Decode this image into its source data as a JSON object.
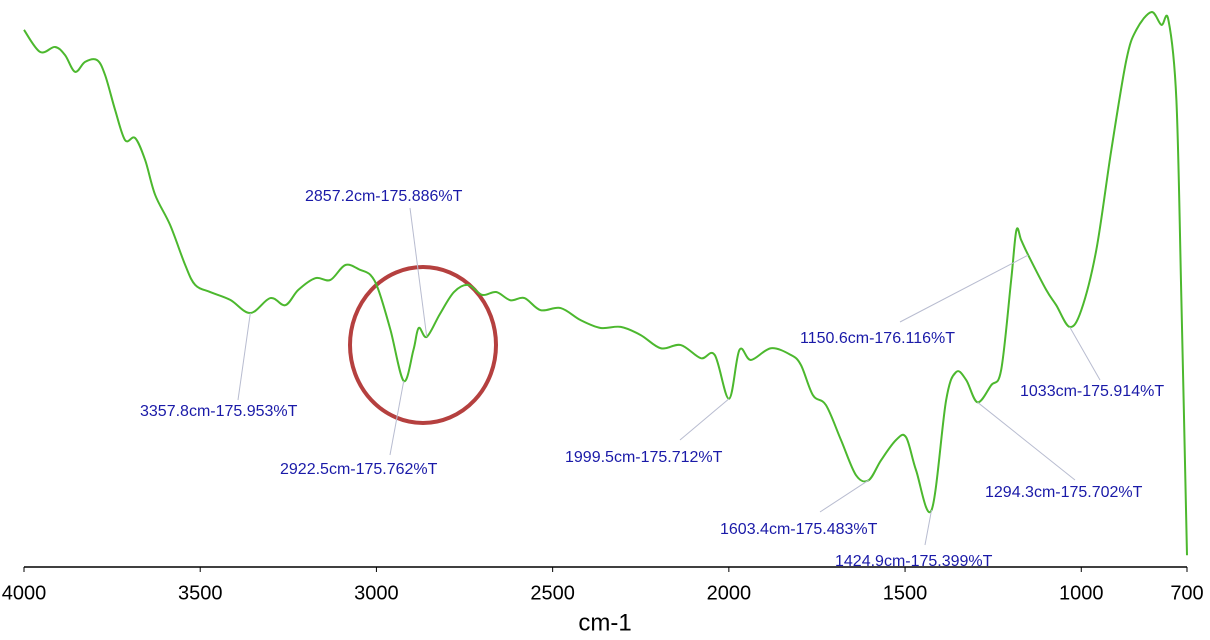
{
  "chart_data": {
    "type": "line",
    "x_label": "cm-1",
    "xlim": [
      4000,
      700
    ],
    "ylim": [
      175.239,
      176.833
    ],
    "xticks": [
      4000,
      3500,
      3000,
      2500,
      2000,
      1500,
      1000,
      700
    ],
    "series": [
      {
        "color": "#4cb82e",
        "x": [
          4000,
          3954.5,
          3911.9,
          3883.5,
          3855.1,
          3826.7,
          3792.6,
          3769.9,
          3741.5,
          3713.1,
          3684.7,
          3656.2,
          3627.8,
          3585.2,
          3542.6,
          3514.2,
          3471.6,
          3414.8,
          3357.8,
          3301.1,
          3258.5,
          3221.6,
          3173.3,
          3130.7,
          3088.1,
          3045.5,
          3017,
          2994.3,
          2960,
          2922.5,
          2895,
          2880,
          2857.2,
          2820,
          2780,
          2740,
          2700,
          2660,
          2620,
          2580,
          2534.1,
          2477.3,
          2420.5,
          2363.6,
          2306.8,
          2250,
          2193.2,
          2136.4,
          2079.5,
          2040,
          1999.5,
          1970,
          1937.5,
          1880.7,
          1823.9,
          1795.5,
          1761.4,
          1724.4,
          1681.8,
          1639.2,
          1603.4,
          1568.2,
          1525.6,
          1497.2,
          1468.8,
          1424.9,
          1383.5,
          1355.1,
          1326.7,
          1294.3,
          1255.7,
          1227.3,
          1198.9,
          1184,
          1170.5,
          1150.6,
          1099.4,
          1071,
          1033,
          1000,
          957.4,
          914.8,
          872.2,
          843.8,
          801.1,
          772.7,
          752.8,
          730.1,
          715.9,
          700
        ],
        "values": [
          176.749,
          176.687,
          176.701,
          176.678,
          176.631,
          176.659,
          176.664,
          176.622,
          176.524,
          176.439,
          176.445,
          176.383,
          176.285,
          176.2,
          176.088,
          176.032,
          176.012,
          175.99,
          175.953,
          175.995,
          175.975,
          176.018,
          176.051,
          176.046,
          176.088,
          176.074,
          176.06,
          176.018,
          175.905,
          175.762,
          175.849,
          175.911,
          175.886,
          175.95,
          176.012,
          176.032,
          176.004,
          176.012,
          175.989,
          175.995,
          175.961,
          175.967,
          175.933,
          175.911,
          175.914,
          175.891,
          175.854,
          175.863,
          175.826,
          175.835,
          175.712,
          175.849,
          175.821,
          175.854,
          175.835,
          175.807,
          175.722,
          175.694,
          175.596,
          175.497,
          175.483,
          175.539,
          175.596,
          175.604,
          175.511,
          175.399,
          175.708,
          175.787,
          175.765,
          175.702,
          175.75,
          175.793,
          176.046,
          176.186,
          176.158,
          176.116,
          176.018,
          175.975,
          175.914,
          175.961,
          176.13,
          176.411,
          176.664,
          176.749,
          176.799,
          176.763,
          176.777,
          176.552,
          175.989,
          175.272
        ]
      }
    ],
    "peaks": [
      {
        "x": 3357.8,
        "y": 175.953,
        "label": "3357.8cm-175.953%T"
      },
      {
        "x": 2922.5,
        "y": 175.762,
        "label": "2922.5cm-175.762%T"
      },
      {
        "x": 2857.2,
        "y": 175.886,
        "label": "2857.2cm-175.886%T"
      },
      {
        "x": 1999.5,
        "y": 175.712,
        "label": "1999.5cm-175.712%T"
      },
      {
        "x": 1603.4,
        "y": 175.483,
        "label": "1603.4cm-175.483%T"
      },
      {
        "x": 1424.9,
        "y": 175.399,
        "label": "1424.9cm-175.399%T"
      },
      {
        "x": 1294.3,
        "y": 175.702,
        "label": "1294.3cm-175.702%T"
      },
      {
        "x": 1150.6,
        "y": 176.116,
        "label": "1150.6cm-176.116%T"
      },
      {
        "x": 1033,
        "y": 175.914,
        "label": "1033cm-175.914%T"
      }
    ]
  }
}
